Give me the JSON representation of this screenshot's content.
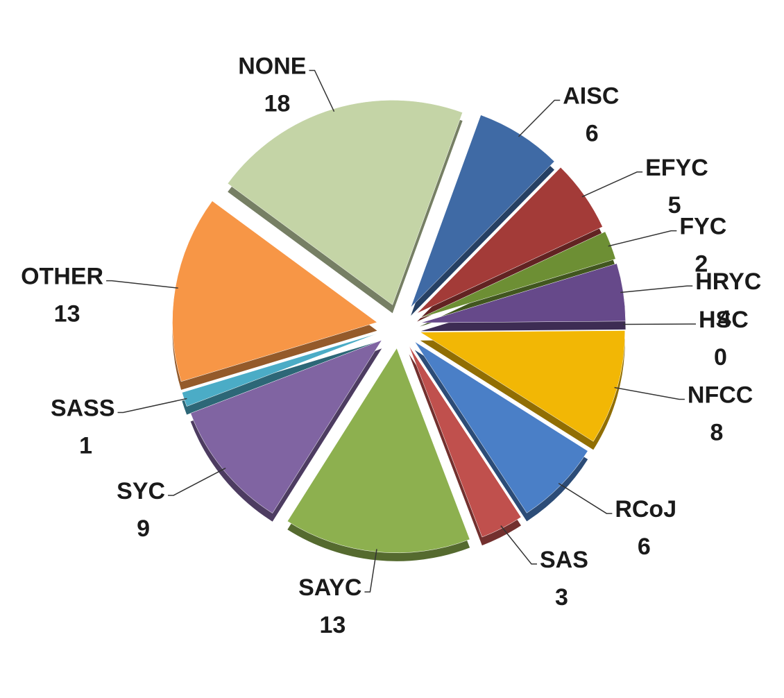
{
  "chart_data": {
    "type": "pie",
    "categories": [
      "AISC",
      "EFYC",
      "FYC",
      "HRYC",
      "HSC",
      "NFCC",
      "RCoJ",
      "SAS",
      "SAYC",
      "SYC",
      "SASS",
      "OTHER",
      "NONE"
    ],
    "values": [
      6,
      5,
      2,
      4,
      0,
      8,
      6,
      3,
      13,
      9,
      1,
      13,
      18
    ],
    "colors": [
      "#3f6aa5",
      "#a33b38",
      "#6d8f34",
      "#66498a",
      "#2b7b8c",
      "#f2b705",
      "#4a7fc7",
      "#c0504d",
      "#8db04f",
      "#8064a2",
      "#4bacc6",
      "#f79646",
      "#c4d4a6"
    ]
  }
}
